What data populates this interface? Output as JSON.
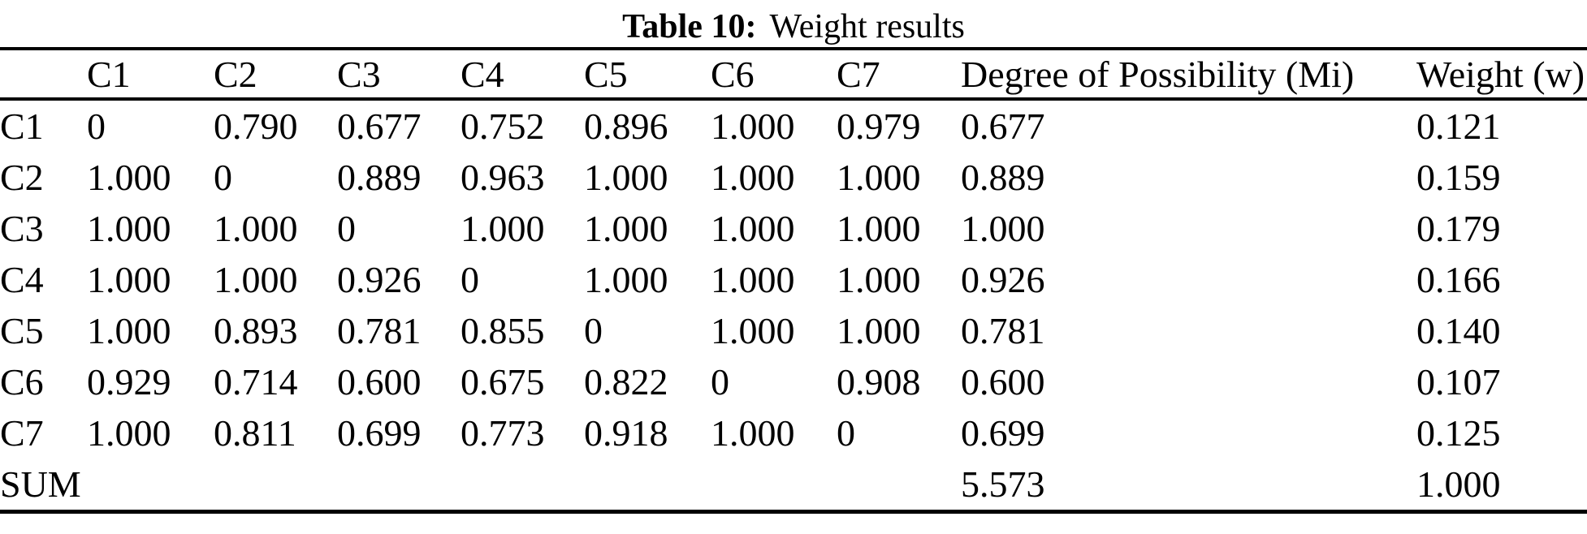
{
  "title": {
    "bold_label": "Table 10:",
    "text": "Weight results"
  },
  "table": {
    "columns": [
      "",
      "C1",
      "C2",
      "C3",
      "C4",
      "C5",
      "C6",
      "C7",
      "Degree of Possibility (Mi)",
      "Weight (w)"
    ],
    "rows": [
      {
        "label": "C1",
        "cells": [
          "0",
          "0.790",
          "0.677",
          "0.752",
          "0.896",
          "1.000",
          "0.979",
          "0.677",
          "0.121"
        ]
      },
      {
        "label": "C2",
        "cells": [
          "1.000",
          "0",
          "0.889",
          "0.963",
          "1.000",
          "1.000",
          "1.000",
          "0.889",
          "0.159"
        ]
      },
      {
        "label": "C3",
        "cells": [
          "1.000",
          "1.000",
          "0",
          "1.000",
          "1.000",
          "1.000",
          "1.000",
          "1.000",
          "0.179"
        ]
      },
      {
        "label": "C4",
        "cells": [
          "1.000",
          "1.000",
          "0.926",
          "0",
          "1.000",
          "1.000",
          "1.000",
          "0.926",
          "0.166"
        ]
      },
      {
        "label": "C5",
        "cells": [
          "1.000",
          "0.893",
          "0.781",
          "0.855",
          "0",
          "1.000",
          "1.000",
          "0.781",
          "0.140"
        ]
      },
      {
        "label": "C6",
        "cells": [
          "0.929",
          "0.714",
          "0.600",
          "0.675",
          "0.822",
          "0",
          "0.908",
          "0.600",
          "0.107"
        ]
      },
      {
        "label": "C7",
        "cells": [
          "1.000",
          "0.811",
          "0.699",
          "0.773",
          "0.918",
          "1.000",
          "0",
          "0.699",
          "0.125"
        ]
      },
      {
        "label": "SUM",
        "cells": [
          "",
          "",
          "",
          "",
          "",
          "",
          "",
          "5.573",
          "1.000"
        ]
      }
    ],
    "text_color": "#000000",
    "background_color": "#ffffff"
  }
}
